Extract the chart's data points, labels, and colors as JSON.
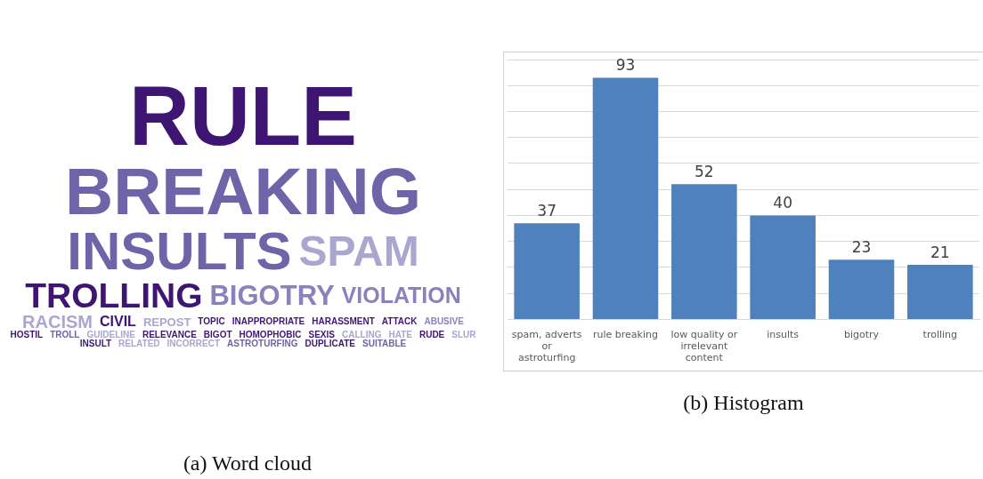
{
  "chart_data": [
    {
      "type": "other",
      "title": "(a) Word cloud",
      "categories": [
        "RULE",
        "BREAKING",
        "INSULTS",
        "SPAM",
        "TROLLING",
        "BIGOTRY",
        "VIOLATION",
        "RACISM",
        "CIVIL",
        "REPOST",
        "TOPIC",
        "INAPPROPRIATE",
        "HARASSMENT",
        "ATTACK",
        "ABUSIVE",
        "HOSTIL",
        "TROLL",
        "GUIDELINE",
        "RELEVANCE",
        "BIGOT",
        "HOMOPHOBIC",
        "SEXIS",
        "CALLING",
        "HATE",
        "RUDE",
        "SLUR",
        "INSULT",
        "RELATED",
        "INCORRECT",
        "ASTROTURFING",
        "DUPLICATE",
        "SUITABLE"
      ],
      "colors": [
        "#3f1574",
        "#6e64a8",
        "#6e64a8",
        "#a9a6d0",
        "#3f1574",
        "#8a82bd",
        "#8a82bd",
        "#a9a6d0",
        "#3f1574",
        "#a9a6d0",
        "#3f1574",
        "#3f1574",
        "#3f1574",
        "#3f1574",
        "#8a82bd",
        "#3f1574",
        "#6e64a8",
        "#a9a6d0",
        "#3f1574",
        "#3f1574",
        "#3f1574",
        "#3f1574",
        "#a9a6d0",
        "#a9a6d0",
        "#3f1574",
        "#a9a6d0",
        "#3f1574",
        "#a9a6d0",
        "#a9a6d0",
        "#6e64a8",
        "#3f1574",
        "#6e64a8"
      ]
    },
    {
      "type": "bar",
      "title": "(b) Histogram",
      "categories": [
        "spam, adverts or astroturfing",
        "rule breaking",
        "low quality or irrelevant content",
        "insults",
        "bigotry",
        "trolling"
      ],
      "values": [
        37,
        93,
        52,
        40,
        23,
        21
      ],
      "color": "#4f81bd",
      "data_labels": true,
      "ylim": [
        0,
        100
      ],
      "yticks": [
        {
          "value": 0,
          "label": null
        },
        {
          "value": 10,
          "label": null
        },
        {
          "value": 20,
          "label": null
        },
        {
          "value": 30,
          "label": null
        },
        {
          "value": 40,
          "label": null
        },
        {
          "value": 50,
          "label": null
        },
        {
          "value": 60,
          "label": null
        },
        {
          "value": 70,
          "label": null
        },
        {
          "value": 80,
          "label": null
        },
        {
          "value": 90,
          "label": null
        },
        {
          "value": 100,
          "label": null
        }
      ],
      "grid": "y",
      "tick_labels": "x"
    }
  ]
}
